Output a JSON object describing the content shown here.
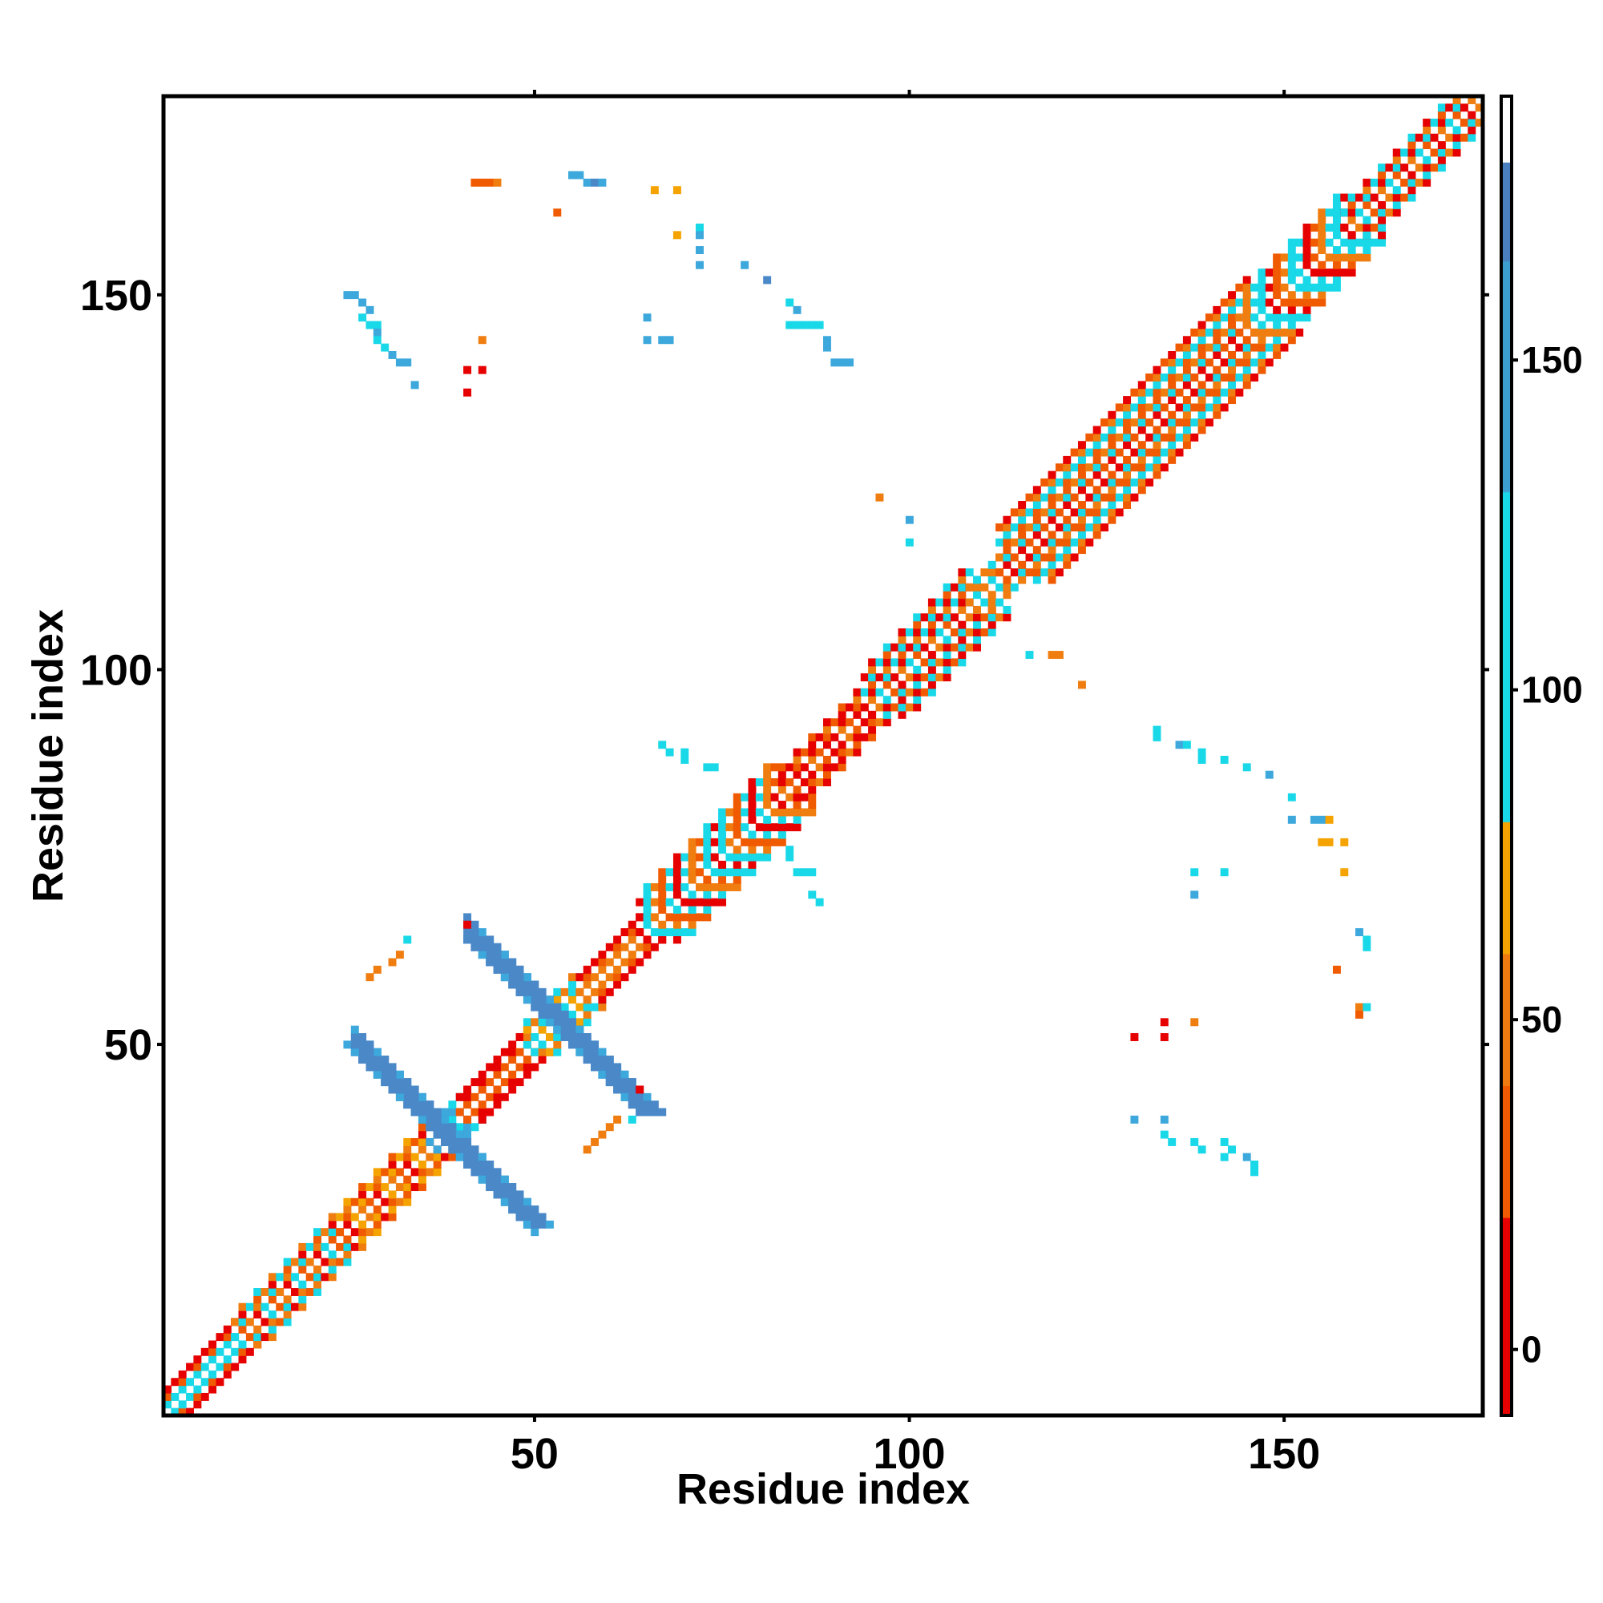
{
  "chart_data": {
    "type": "heatmap",
    "title": "",
    "xlabel": "Residue index",
    "ylabel": "Residue index",
    "xlim": [
      1,
      176
    ],
    "ylim": [
      1,
      176
    ],
    "x_ticks": [
      "50",
      "100",
      "150"
    ],
    "y_ticks": [
      "50",
      "100",
      "150"
    ],
    "x_tick_values": [
      50,
      100,
      150
    ],
    "y_tick_values": [
      50,
      100,
      150
    ],
    "grid": false,
    "legend": "none",
    "colorbar": {
      "position": "right",
      "range": [
        -10,
        190
      ],
      "ticks": [
        "0",
        "50",
        "100",
        "150"
      ],
      "tick_values": [
        0,
        50,
        100,
        150
      ],
      "bands": [
        {
          "from": -10,
          "to": 20,
          "color": "#e60000"
        },
        {
          "from": 20,
          "to": 40,
          "color": "#f05a00"
        },
        {
          "from": 40,
          "to": 60,
          "color": "#ef7a10"
        },
        {
          "from": 60,
          "to": 80,
          "color": "#f5a300"
        },
        {
          "from": 80,
          "to": 130,
          "color": "#19d8e8"
        },
        {
          "from": 130,
          "to": 165,
          "color": "#3c9fd0"
        },
        {
          "from": 165,
          "to": 180,
          "color": "#4a7fc0"
        },
        {
          "from": 180,
          "to": 190,
          "color": "#ffffff"
        }
      ]
    },
    "palette": {
      "red": "#e60000",
      "orange_red": "#f05a00",
      "orange": "#f07d10",
      "amber": "#f5a300",
      "cyan": "#19d8e8",
      "sky": "#3ca8dc",
      "steel": "#4a88c8"
    },
    "diagonal": {
      "pattern": "checker",
      "segments": [
        {
          "from": 1,
          "to": 10,
          "width": 3,
          "colors": [
            "red",
            "orange_red",
            "cyan"
          ]
        },
        {
          "from": 10,
          "to": 24,
          "width": 4,
          "colors": [
            "red",
            "orange",
            "orange_red",
            "cyan"
          ]
        },
        {
          "from": 24,
          "to": 36,
          "width": 4,
          "colors": [
            "red",
            "orange_red",
            "orange",
            "amber"
          ]
        },
        {
          "from": 36,
          "to": 40,
          "width": 3,
          "colors": [
            "cyan",
            "sky"
          ]
        },
        {
          "from": 40,
          "to": 49,
          "width": 3,
          "colors": [
            "red",
            "red",
            "orange_red"
          ]
        },
        {
          "from": 49,
          "to": 56,
          "width": 4,
          "colors": [
            "cyan",
            "orange",
            "amber",
            "cyan"
          ]
        },
        {
          "from": 56,
          "to": 64,
          "width": 3,
          "colors": [
            "red",
            "orange_red",
            "orange"
          ]
        },
        {
          "from": 64,
          "to": 82,
          "width": 6,
          "colors": [
            "cyan",
            "orange_red",
            "red",
            "orange",
            "cyan"
          ]
        },
        {
          "from": 82,
          "to": 94,
          "width": 4,
          "colors": [
            "red",
            "orange_red",
            "orange",
            "red"
          ]
        },
        {
          "from": 94,
          "to": 108,
          "width": 6,
          "colors": [
            "orange_red",
            "cyan",
            "orange",
            "red"
          ]
        },
        {
          "from": 108,
          "to": 112,
          "width": 3,
          "colors": [
            "cyan",
            "orange"
          ]
        },
        {
          "from": 112,
          "to": 145,
          "width": 7,
          "colors": [
            "orange_red",
            "cyan",
            "red",
            "orange",
            "cyan",
            "orange_red"
          ]
        },
        {
          "from": 145,
          "to": 158,
          "width": 6,
          "colors": [
            "orange",
            "cyan",
            "orange_red",
            "cyan",
            "red"
          ]
        },
        {
          "from": 158,
          "to": 176,
          "width": 4,
          "colors": [
            "orange_red",
            "cyan",
            "orange",
            "red"
          ]
        }
      ]
    },
    "diagonal_bands": [
      {
        "x0": 25,
        "y0": 50,
        "x1": 49,
        "y1": 26,
        "width": 4,
        "color": "steel"
      },
      {
        "x0": 41,
        "y0": 64,
        "x1": 64,
        "y1": 41,
        "width": 4,
        "color": "steel"
      }
    ],
    "contacts": [
      [
        42,
        165,
        "orange_red"
      ],
      [
        43,
        165,
        "orange_red"
      ],
      [
        44,
        165,
        "orange_red"
      ],
      [
        45,
        165,
        "orange"
      ],
      [
        55,
        166,
        "sky"
      ],
      [
        56,
        166,
        "sky"
      ],
      [
        57,
        165,
        "sky"
      ],
      [
        58,
        165,
        "steel"
      ],
      [
        59,
        165,
        "sky"
      ],
      [
        53,
        161,
        "orange_red"
      ],
      [
        66,
        164,
        "amber"
      ],
      [
        69,
        164,
        "amber"
      ],
      [
        69,
        158,
        "amber"
      ],
      [
        72,
        159,
        "cyan"
      ],
      [
        72,
        158,
        "sky"
      ],
      [
        72,
        156,
        "sky"
      ],
      [
        72,
        154,
        "sky"
      ],
      [
        78,
        154,
        "sky"
      ],
      [
        81,
        152,
        "steel"
      ],
      [
        84,
        149,
        "cyan"
      ],
      [
        85,
        148,
        "sky"
      ],
      [
        84,
        146,
        "cyan"
      ],
      [
        85,
        146,
        "cyan"
      ],
      [
        86,
        146,
        "cyan"
      ],
      [
        87,
        146,
        "cyan"
      ],
      [
        88,
        146,
        "cyan"
      ],
      [
        89,
        144,
        "sky"
      ],
      [
        89,
        143,
        "sky"
      ],
      [
        90,
        141,
        "sky"
      ],
      [
        91,
        141,
        "sky"
      ],
      [
        92,
        141,
        "sky"
      ],
      [
        65,
        147,
        "sky"
      ],
      [
        68,
        144,
        "sky"
      ],
      [
        65,
        144,
        "sky"
      ],
      [
        67,
        144,
        "sky"
      ],
      [
        25,
        150,
        "sky"
      ],
      [
        26,
        150,
        "sky"
      ],
      [
        27,
        149,
        "sky"
      ],
      [
        28,
        148,
        "sky"
      ],
      [
        27,
        147,
        "cyan"
      ],
      [
        28,
        146,
        "cyan"
      ],
      [
        29,
        146,
        "cyan"
      ],
      [
        29,
        145,
        "sky"
      ],
      [
        29,
        144,
        "cyan"
      ],
      [
        30,
        143,
        "cyan"
      ],
      [
        31,
        142,
        "sky"
      ],
      [
        32,
        141,
        "sky"
      ],
      [
        33,
        141,
        "sky"
      ],
      [
        34,
        138,
        "sky"
      ],
      [
        43,
        144,
        "orange"
      ],
      [
        41,
        140,
        "red"
      ],
      [
        43,
        140,
        "red"
      ],
      [
        41,
        137,
        "red"
      ],
      [
        96,
        123,
        "orange"
      ],
      [
        100,
        120,
        "sky"
      ],
      [
        100,
        117,
        "cyan"
      ],
      [
        116,
        102,
        "cyan"
      ],
      [
        119,
        102,
        "orange"
      ],
      [
        120,
        102,
        "orange"
      ],
      [
        123,
        98,
        "orange"
      ],
      [
        67,
        90,
        "cyan"
      ],
      [
        68,
        89,
        "cyan"
      ],
      [
        70,
        89,
        "cyan"
      ],
      [
        70,
        88,
        "cyan"
      ],
      [
        73,
        87,
        "cyan"
      ],
      [
        74,
        87,
        "cyan"
      ],
      [
        84,
        76,
        "cyan"
      ],
      [
        84,
        75,
        "cyan"
      ],
      [
        85,
        73,
        "cyan"
      ],
      [
        86,
        73,
        "cyan"
      ],
      [
        87,
        73,
        "cyan"
      ],
      [
        87,
        70,
        "cyan"
      ],
      [
        88,
        69,
        "cyan"
      ],
      [
        133,
        92,
        "cyan"
      ],
      [
        133,
        91,
        "cyan"
      ],
      [
        136,
        90,
        "sky"
      ],
      [
        137,
        90,
        "cyan"
      ],
      [
        139,
        89,
        "cyan"
      ],
      [
        139,
        88,
        "cyan"
      ],
      [
        142,
        88,
        "cyan"
      ],
      [
        145,
        87,
        "cyan"
      ],
      [
        148,
        86,
        "sky"
      ],
      [
        151,
        83,
        "cyan"
      ],
      [
        151,
        80,
        "sky"
      ],
      [
        154,
        80,
        "sky"
      ],
      [
        155,
        80,
        "sky"
      ],
      [
        156,
        80,
        "amber"
      ],
      [
        155,
        77,
        "amber"
      ],
      [
        156,
        77,
        "amber"
      ],
      [
        158,
        77,
        "amber"
      ],
      [
        158,
        73,
        "amber"
      ],
      [
        160,
        65,
        "sky"
      ],
      [
        161,
        64,
        "cyan"
      ],
      [
        161,
        63,
        "cyan"
      ],
      [
        157,
        60,
        "orange_red"
      ],
      [
        160,
        55,
        "orange"
      ],
      [
        160,
        54,
        "orange_red"
      ],
      [
        161,
        55,
        "cyan"
      ],
      [
        138,
        73,
        "cyan"
      ],
      [
        138,
        70,
        "sky"
      ],
      [
        142,
        73,
        "cyan"
      ],
      [
        130,
        51,
        "red"
      ],
      [
        134,
        53,
        "red"
      ],
      [
        134,
        51,
        "red"
      ],
      [
        138,
        53,
        "orange"
      ],
      [
        130,
        40,
        "sky"
      ],
      [
        134,
        40,
        "sky"
      ],
      [
        134,
        38,
        "cyan"
      ],
      [
        135,
        37,
        "cyan"
      ],
      [
        138,
        37,
        "cyan"
      ],
      [
        139,
        36,
        "cyan"
      ],
      [
        142,
        37,
        "cyan"
      ],
      [
        143,
        36,
        "cyan"
      ],
      [
        142,
        35,
        "cyan"
      ],
      [
        145,
        35,
        "sky"
      ],
      [
        146,
        34,
        "cyan"
      ],
      [
        146,
        33,
        "cyan"
      ],
      [
        33,
        64,
        "cyan"
      ],
      [
        32,
        62,
        "orange"
      ],
      [
        31,
        61,
        "orange"
      ],
      [
        29,
        60,
        "orange"
      ],
      [
        28,
        59,
        "orange"
      ],
      [
        41,
        66,
        "red"
      ],
      [
        63,
        40,
        "cyan"
      ],
      [
        61,
        40,
        "orange"
      ],
      [
        60,
        39,
        "orange"
      ],
      [
        59,
        38,
        "orange"
      ],
      [
        58,
        37,
        "orange"
      ],
      [
        57,
        36,
        "orange"
      ],
      [
        64,
        44,
        "red"
      ]
    ]
  }
}
